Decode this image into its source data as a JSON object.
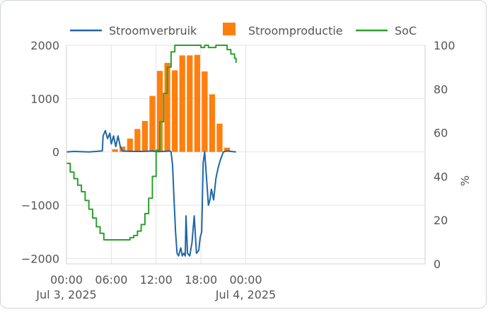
{
  "chart_data": {
    "type": "bar+line",
    "legend": {
      "position": "top",
      "items": [
        {
          "label": "Stroomverbruik",
          "color": "#1f66a8",
          "kind": "line"
        },
        {
          "label": "Stroomproductie",
          "color": "#ff7f0e",
          "kind": "bar"
        },
        {
          "label": "SoC",
          "color": "#2ca02c",
          "kind": "line"
        }
      ]
    },
    "x_axis": {
      "range_hours": [
        0,
        48
      ],
      "ticks": [
        {
          "h": 0,
          "line1": "00:00",
          "line2": "Jul 3, 2025"
        },
        {
          "h": 6,
          "line1": "06:00",
          "line2": ""
        },
        {
          "h": 12,
          "line1": "12:00",
          "line2": ""
        },
        {
          "h": 18,
          "line1": "18:00",
          "line2": ""
        },
        {
          "h": 24,
          "line1": "00:00",
          "line2": "Jul 4, 2025"
        }
      ]
    },
    "y_left": {
      "range": [
        -2100,
        2000
      ],
      "ticks": [
        "2000",
        "1000",
        "0",
        "−1000",
        "−2000"
      ],
      "tick_values": [
        2000,
        1000,
        0,
        -1000,
        -2000
      ]
    },
    "y_right": {
      "label": "%",
      "range": [
        0,
        100
      ],
      "ticks": [
        "100",
        "80",
        "60",
        "40",
        "20",
        "0"
      ],
      "tick_values": [
        100,
        80,
        60,
        40,
        20,
        0
      ]
    },
    "grid": true,
    "series": [
      {
        "name": "Stroomproductie",
        "type": "bar",
        "color": "#ff7f0e",
        "hours": [
          6,
          7,
          8,
          9,
          10,
          11,
          12,
          13,
          14,
          15,
          16,
          17,
          18,
          19,
          20,
          21
        ],
        "values": [
          50,
          100,
          250,
          430,
          580,
          1050,
          1520,
          1670,
          1530,
          1810,
          1810,
          1820,
          1510,
          1080,
          530,
          80
        ]
      },
      {
        "name": "Stroomverbruik",
        "type": "line",
        "color": "#1f66a8",
        "points": [
          [
            0.0,
            0
          ],
          [
            1.0,
            10
          ],
          [
            2.0,
            5
          ],
          [
            3.0,
            0
          ],
          [
            4.0,
            10
          ],
          [
            4.8,
            20
          ],
          [
            4.9,
            300
          ],
          [
            5.2,
            400
          ],
          [
            5.5,
            250
          ],
          [
            5.8,
            350
          ],
          [
            6.0,
            150
          ],
          [
            6.3,
            300
          ],
          [
            6.6,
            100
          ],
          [
            6.9,
            300
          ],
          [
            7.2,
            100
          ],
          [
            7.5,
            20
          ],
          [
            8.0,
            15
          ],
          [
            9.0,
            10
          ],
          [
            10.0,
            10
          ],
          [
            11.0,
            15
          ],
          [
            11.5,
            20
          ],
          [
            12.0,
            5
          ],
          [
            13.0,
            10
          ],
          [
            13.8,
            20
          ],
          [
            14.0,
            0
          ],
          [
            14.2,
            -250
          ],
          [
            14.4,
            -900
          ],
          [
            14.6,
            -1500
          ],
          [
            14.8,
            -1900
          ],
          [
            15.0,
            -1950
          ],
          [
            15.3,
            -1800
          ],
          [
            15.5,
            -1950
          ],
          [
            15.7,
            -1900
          ],
          [
            15.9,
            -1950
          ],
          [
            16.0,
            -1200
          ],
          [
            16.2,
            -1900
          ],
          [
            16.5,
            -1950
          ],
          [
            16.8,
            -1700
          ],
          [
            17.1,
            -1200
          ],
          [
            17.4,
            -1900
          ],
          [
            17.7,
            -1850
          ],
          [
            17.9,
            -1600
          ],
          [
            18.1,
            -1500
          ],
          [
            18.3,
            -200
          ],
          [
            18.5,
            0
          ],
          [
            18.7,
            -400
          ],
          [
            19.0,
            -1000
          ],
          [
            19.2,
            -900
          ],
          [
            19.4,
            -700
          ],
          [
            19.7,
            -900
          ],
          [
            20.0,
            -500
          ],
          [
            20.3,
            -300
          ],
          [
            20.6,
            -150
          ],
          [
            21.0,
            0
          ],
          [
            21.5,
            20
          ],
          [
            22.0,
            10
          ],
          [
            22.7,
            0
          ]
        ]
      },
      {
        "name": "SoC",
        "type": "line",
        "color": "#2ca02c",
        "points": [
          [
            0.0,
            46
          ],
          [
            0.5,
            42
          ],
          [
            1.0,
            39
          ],
          [
            1.5,
            36
          ],
          [
            2.0,
            33
          ],
          [
            2.5,
            29
          ],
          [
            3.0,
            25
          ],
          [
            3.5,
            21
          ],
          [
            4.0,
            17
          ],
          [
            4.5,
            14
          ],
          [
            5.0,
            11
          ],
          [
            6.0,
            11
          ],
          [
            7.0,
            11
          ],
          [
            8.0,
            11
          ],
          [
            8.5,
            12
          ],
          [
            9.0,
            13
          ],
          [
            9.5,
            15
          ],
          [
            10.0,
            18
          ],
          [
            10.5,
            23
          ],
          [
            11.0,
            30
          ],
          [
            11.5,
            40
          ],
          [
            12.0,
            52
          ],
          [
            12.5,
            65
          ],
          [
            13.0,
            78
          ],
          [
            13.5,
            90
          ],
          [
            14.0,
            97
          ],
          [
            14.5,
            100
          ],
          [
            16.0,
            100
          ],
          [
            17.0,
            100
          ],
          [
            18.0,
            99
          ],
          [
            18.5,
            100
          ],
          [
            19.0,
            99
          ],
          [
            20.0,
            100
          ],
          [
            21.0,
            100
          ],
          [
            21.5,
            98
          ],
          [
            22.0,
            96
          ],
          [
            22.5,
            94
          ],
          [
            22.7,
            92
          ]
        ]
      }
    ]
  }
}
